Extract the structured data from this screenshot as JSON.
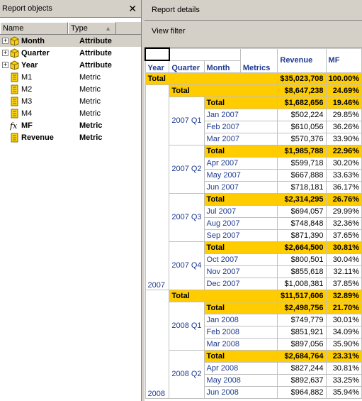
{
  "left_pane": {
    "title": "Report objects",
    "close_glyph": "✕",
    "columns": {
      "name": "Name",
      "type": "Type",
      "sort_glyph": "▲"
    },
    "objects": [
      {
        "name": "Month",
        "type": "Attribute",
        "expandable": true,
        "bold": true,
        "icon": "attribute-icon"
      },
      {
        "name": "Quarter",
        "type": "Attribute",
        "expandable": true,
        "bold": true,
        "icon": "attribute-icon"
      },
      {
        "name": "Year",
        "type": "Attribute",
        "expandable": true,
        "bold": true,
        "icon": "attribute-icon"
      },
      {
        "name": "M1",
        "type": "Metric",
        "expandable": false,
        "bold": false,
        "icon": "metric-icon"
      },
      {
        "name": "M2",
        "type": "Metric",
        "expandable": false,
        "bold": false,
        "icon": "metric-icon"
      },
      {
        "name": "M3",
        "type": "Metric",
        "expandable": false,
        "bold": false,
        "icon": "metric-icon"
      },
      {
        "name": "M4",
        "type": "Metric",
        "expandable": false,
        "bold": false,
        "icon": "metric-icon"
      },
      {
        "name": "MF",
        "type": "Metric",
        "expandable": false,
        "bold": true,
        "icon": "formula-icon"
      },
      {
        "name": "Revenue",
        "type": "Metric",
        "expandable": false,
        "bold": true,
        "icon": "metric-icon"
      }
    ]
  },
  "right_pane": {
    "tab": "Report details",
    "view_filter": "View filter",
    "grid": {
      "headers": {
        "year": "Year",
        "quarter": "Quarter",
        "month": "Month",
        "metrics": "Metrics",
        "revenue": "Revenue",
        "mf": "MF"
      },
      "grand_total": {
        "label": "Total",
        "revenue": "$35,023,708",
        "mf": "100.00%"
      },
      "years": [
        {
          "year": "2007",
          "total_label": "Total",
          "revenue": "$8,647,238",
          "mf": "24.69%",
          "quarters": [
            {
              "quarter": "2007 Q1",
              "total_label": "Total",
              "revenue": "$1,682,656",
              "mf": "19.46%",
              "months": [
                {
                  "month": "Jan 2007",
                  "revenue": "$502,224",
                  "mf": "29.85%"
                },
                {
                  "month": "Feb 2007",
                  "revenue": "$610,056",
                  "mf": "36.26%"
                },
                {
                  "month": "Mar 2007",
                  "revenue": "$570,376",
                  "mf": "33.90%"
                }
              ]
            },
            {
              "quarter": "2007 Q2",
              "total_label": "Total",
              "revenue": "$1,985,788",
              "mf": "22.96%",
              "months": [
                {
                  "month": "Apr 2007",
                  "revenue": "$599,718",
                  "mf": "30.20%"
                },
                {
                  "month": "May 2007",
                  "revenue": "$667,888",
                  "mf": "33.63%"
                },
                {
                  "month": "Jun 2007",
                  "revenue": "$718,181",
                  "mf": "36.17%"
                }
              ]
            },
            {
              "quarter": "2007 Q3",
              "total_label": "Total",
              "revenue": "$2,314,295",
              "mf": "26.76%",
              "months": [
                {
                  "month": "Jul 2007",
                  "revenue": "$694,057",
                  "mf": "29.99%"
                },
                {
                  "month": "Aug 2007",
                  "revenue": "$748,848",
                  "mf": "32.36%"
                },
                {
                  "month": "Sep 2007",
                  "revenue": "$871,390",
                  "mf": "37.65%"
                }
              ]
            },
            {
              "quarter": "2007 Q4",
              "total_label": "Total",
              "revenue": "$2,664,500",
              "mf": "30.81%",
              "months": [
                {
                  "month": "Oct 2007",
                  "revenue": "$800,501",
                  "mf": "30.04%"
                },
                {
                  "month": "Nov 2007",
                  "revenue": "$855,618",
                  "mf": "32.11%"
                },
                {
                  "month": "Dec 2007",
                  "revenue": "$1,008,381",
                  "mf": "37.85%"
                }
              ]
            }
          ]
        },
        {
          "year": "2008",
          "total_label": "Total",
          "revenue": "$11,517,606",
          "mf": "32.89%",
          "quarters": [
            {
              "quarter": "2008 Q1",
              "total_label": "Total",
              "revenue": "$2,498,756",
              "mf": "21.70%",
              "months": [
                {
                  "month": "Jan 2008",
                  "revenue": "$749,779",
                  "mf": "30.01%"
                },
                {
                  "month": "Feb 2008",
                  "revenue": "$851,921",
                  "mf": "34.09%"
                },
                {
                  "month": "Mar 2008",
                  "revenue": "$897,056",
                  "mf": "35.90%"
                }
              ]
            },
            {
              "quarter": "2008 Q2",
              "total_label": "Total",
              "revenue": "$2,684,764",
              "mf": "23.31%",
              "months": [
                {
                  "month": "Apr 2008",
                  "revenue": "$827,244",
                  "mf": "30.81%"
                },
                {
                  "month": "May 2008",
                  "revenue": "$892,637",
                  "mf": "33.25%"
                },
                {
                  "month": "Jun 2008",
                  "revenue": "$964,882",
                  "mf": "35.94%"
                }
              ]
            }
          ]
        }
      ]
    }
  },
  "colors": {
    "total_fill": "#ffcc00",
    "header_text": "#1f3b8f",
    "chrome": "#d4d0c8"
  }
}
